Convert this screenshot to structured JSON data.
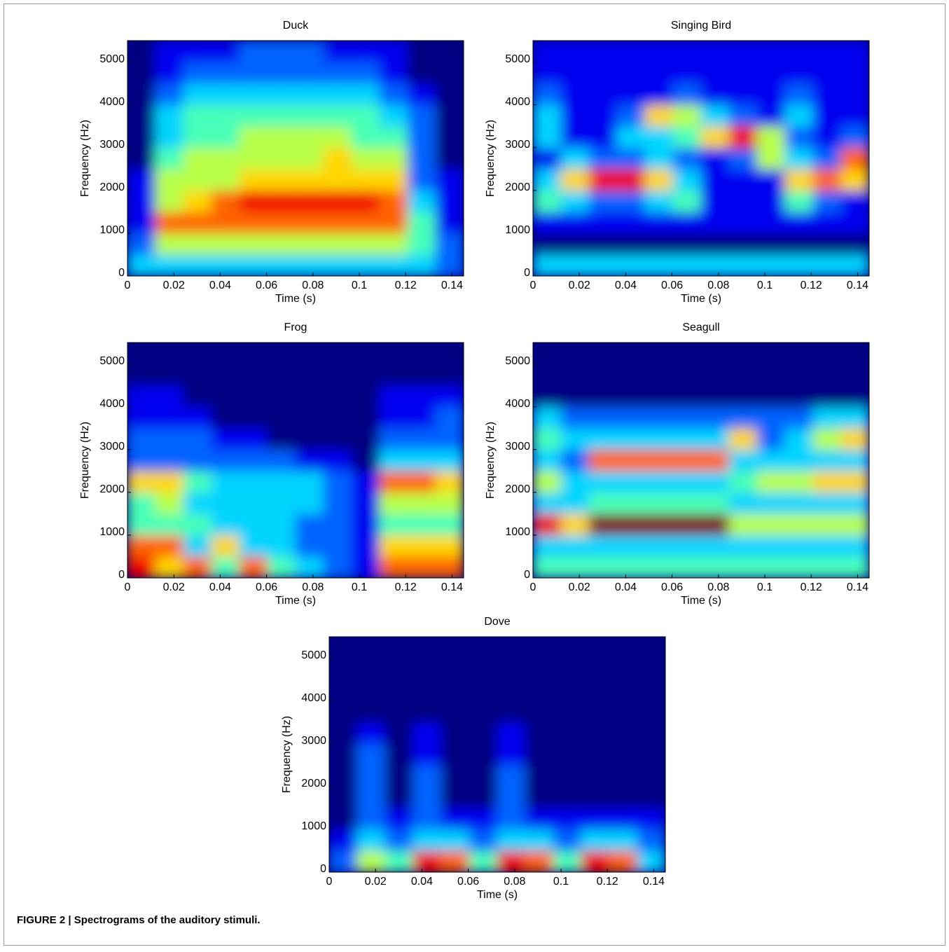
{
  "caption": "FIGURE 2 | Spectrograms of the auditory stimuli.",
  "chart_data": [
    {
      "type": "heatmap",
      "title": "Duck",
      "xlabel": "Time (s)",
      "ylabel": "Frequency (Hz)",
      "xlim": [
        0,
        0.145
      ],
      "xticks": [
        0,
        0.02,
        0.04,
        0.06,
        0.08,
        0.1,
        0.12,
        0.14
      ],
      "ylim": [
        0,
        5500
      ],
      "yticks": [
        0,
        1000,
        2000,
        3000,
        4000,
        5000
      ],
      "zlim": [
        0,
        9
      ],
      "z": [
        [
          3,
          3,
          3,
          3,
          3,
          3,
          3,
          3,
          3,
          3,
          3,
          2
        ],
        [
          2,
          5,
          5,
          5,
          5,
          5,
          5,
          5,
          5,
          5,
          4,
          2
        ],
        [
          1,
          7,
          7,
          7,
          7,
          7,
          7,
          7,
          7,
          7,
          4,
          1
        ],
        [
          1,
          5,
          6,
          7,
          8,
          8,
          8,
          8,
          8,
          7,
          3,
          1
        ],
        [
          1,
          5,
          5,
          5,
          6,
          6,
          6,
          6,
          6,
          6,
          2,
          1
        ],
        [
          0,
          4,
          5,
          5,
          5,
          5,
          5,
          6,
          5,
          5,
          2,
          0
        ],
        [
          0,
          3,
          4,
          4,
          5,
          5,
          5,
          5,
          4,
          4,
          2,
          0
        ],
        [
          0,
          3,
          4,
          4,
          4,
          4,
          4,
          4,
          4,
          3,
          2,
          0
        ],
        [
          0,
          2,
          3,
          3,
          3,
          3,
          3,
          3,
          3,
          2,
          1,
          0
        ],
        [
          0,
          1,
          2,
          2,
          2,
          2,
          2,
          2,
          2,
          1,
          0,
          0
        ],
        [
          0,
          1,
          1,
          1,
          2,
          2,
          2,
          1,
          1,
          1,
          0,
          0
        ]
      ]
    },
    {
      "type": "heatmap",
      "title": "Singing Bird",
      "xlabel": "Time (s)",
      "ylabel": "Frequency (Hz)",
      "xlim": [
        0,
        0.145
      ],
      "xticks": [
        0,
        0.02,
        0.04,
        0.06,
        0.08,
        0.1,
        0.12,
        0.14
      ],
      "ylim": [
        0,
        5500
      ],
      "yticks": [
        0,
        1000,
        2000,
        3000,
        4000,
        5000
      ],
      "zlim": [
        0,
        9
      ],
      "z": [
        [
          3,
          3,
          3,
          3,
          3,
          3,
          3,
          3,
          3,
          3,
          3,
          3
        ],
        [
          0,
          0,
          0,
          0,
          0,
          0,
          0,
          0,
          0,
          0,
          0,
          0
        ],
        [
          1,
          1,
          1,
          1,
          1,
          1,
          1,
          1,
          1,
          1,
          1,
          1
        ],
        [
          4,
          3,
          2,
          2,
          3,
          4,
          1,
          1,
          1,
          4,
          2,
          1
        ],
        [
          3,
          6,
          8,
          8,
          6,
          3,
          1,
          1,
          1,
          6,
          7,
          6
        ],
        [
          1,
          3,
          2,
          2,
          3,
          2,
          1,
          2,
          5,
          3,
          2,
          7
        ],
        [
          3,
          1,
          1,
          3,
          3,
          4,
          6,
          8,
          5,
          2,
          1,
          2
        ],
        [
          3,
          1,
          1,
          2,
          6,
          5,
          3,
          2,
          1,
          3,
          1,
          1
        ],
        [
          2,
          1,
          1,
          1,
          1,
          2,
          1,
          1,
          1,
          2,
          1,
          1
        ],
        [
          1,
          1,
          1,
          1,
          1,
          1,
          1,
          1,
          1,
          1,
          1,
          1
        ],
        [
          1,
          1,
          1,
          1,
          1,
          1,
          1,
          1,
          1,
          1,
          1,
          1
        ]
      ]
    },
    {
      "type": "heatmap",
      "title": "Frog",
      "xlabel": "Time (s)",
      "ylabel": "Frequency (Hz)",
      "xlim": [
        0,
        0.145
      ],
      "xticks": [
        0,
        0.02,
        0.04,
        0.06,
        0.08,
        0.1,
        0.12,
        0.14
      ],
      "ylim": [
        0,
        5500
      ],
      "yticks": [
        0,
        1000,
        2000,
        3000,
        4000,
        5000
      ],
      "zlim": [
        0,
        9
      ],
      "z": [
        [
          8,
          6,
          7,
          4,
          7,
          4,
          3,
          2,
          1,
          7,
          7,
          7
        ],
        [
          7,
          7,
          3,
          6,
          3,
          3,
          2,
          2,
          1,
          6,
          6,
          6
        ],
        [
          4,
          4,
          4,
          3,
          3,
          3,
          2,
          2,
          1,
          4,
          4,
          4
        ],
        [
          4,
          5,
          3,
          3,
          3,
          3,
          3,
          2,
          1,
          5,
          5,
          5
        ],
        [
          6,
          6,
          4,
          3,
          3,
          3,
          3,
          2,
          1,
          7,
          7,
          6
        ],
        [
          2,
          2,
          2,
          2,
          2,
          2,
          1,
          1,
          0,
          3,
          3,
          3
        ],
        [
          2,
          2,
          2,
          1,
          1,
          0,
          0,
          0,
          0,
          2,
          2,
          2
        ],
        [
          1,
          1,
          1,
          0,
          0,
          0,
          0,
          0,
          0,
          1,
          1,
          2
        ],
        [
          1,
          1,
          0,
          0,
          0,
          0,
          0,
          0,
          0,
          1,
          1,
          1
        ],
        [
          0,
          0,
          0,
          0,
          0,
          0,
          0,
          0,
          0,
          0,
          0,
          0
        ],
        [
          0,
          0,
          0,
          0,
          0,
          0,
          0,
          0,
          0,
          0,
          0,
          0
        ]
      ]
    },
    {
      "type": "heatmap",
      "title": "Seagull",
      "xlabel": "Time (s)",
      "ylabel": "Frequency (Hz)",
      "xlim": [
        0,
        0.145
      ],
      "xticks": [
        0,
        0.02,
        0.04,
        0.06,
        0.08,
        0.1,
        0.12,
        0.14
      ],
      "ylim": [
        0,
        5500
      ],
      "yticks": [
        0,
        1000,
        2000,
        3000,
        4000,
        5000
      ],
      "zlim": [
        0,
        9
      ],
      "z": [
        [
          4,
          4,
          4,
          4,
          4,
          4,
          4,
          4,
          4,
          4,
          4,
          4
        ],
        [
          3,
          3,
          3,
          3,
          3,
          3,
          3,
          3,
          3,
          3,
          3,
          3
        ],
        [
          8,
          6,
          9,
          9,
          9,
          9,
          9,
          5,
          5,
          5,
          5,
          5
        ],
        [
          3,
          3,
          4,
          4,
          4,
          4,
          4,
          3,
          3,
          3,
          3,
          3
        ],
        [
          5,
          3,
          3,
          3,
          3,
          3,
          3,
          4,
          5,
          5,
          6,
          6
        ],
        [
          3,
          2,
          7,
          7,
          7,
          7,
          7,
          3,
          3,
          3,
          3,
          3
        ],
        [
          4,
          3,
          3,
          3,
          3,
          3,
          3,
          6,
          2,
          3,
          5,
          6
        ],
        [
          3,
          2,
          2,
          2,
          2,
          2,
          2,
          2,
          2,
          2,
          3,
          3
        ],
        [
          0,
          0,
          0,
          0,
          0,
          0,
          0,
          0,
          0,
          0,
          0,
          0
        ],
        [
          0,
          0,
          0,
          0,
          0,
          0,
          0,
          0,
          0,
          0,
          0,
          0
        ],
        [
          0,
          0,
          0,
          0,
          0,
          0,
          0,
          0,
          0,
          0,
          0,
          0
        ]
      ]
    },
    {
      "type": "heatmap",
      "title": "Dove",
      "xlabel": "Time (s)",
      "ylabel": "Frequency (Hz)",
      "xlim": [
        0,
        0.145
      ],
      "xticks": [
        0,
        0.02,
        0.04,
        0.06,
        0.08,
        0.1,
        0.12,
        0.14
      ],
      "ylim": [
        0,
        5500
      ],
      "yticks": [
        0,
        1000,
        2000,
        3000,
        4000,
        5000
      ],
      "zlim": [
        0,
        9
      ],
      "z": [
        [
          2,
          5,
          4,
          8,
          7,
          4,
          8,
          7,
          4,
          8,
          7,
          3
        ],
        [
          1,
          3,
          2,
          3,
          3,
          2,
          3,
          3,
          2,
          3,
          3,
          2
        ],
        [
          0,
          2,
          1,
          2,
          1,
          1,
          2,
          1,
          1,
          1,
          1,
          1
        ],
        [
          0,
          2,
          0,
          2,
          0,
          0,
          2,
          0,
          0,
          0,
          0,
          0
        ],
        [
          0,
          2,
          0,
          2,
          0,
          0,
          2,
          0,
          0,
          0,
          0,
          0
        ],
        [
          0,
          2,
          0,
          1,
          0,
          0,
          1,
          0,
          0,
          0,
          0,
          0
        ],
        [
          0,
          1,
          0,
          1,
          0,
          0,
          1,
          0,
          0,
          0,
          0,
          0
        ],
        [
          0,
          0,
          0,
          0,
          0,
          0,
          0,
          0,
          0,
          0,
          0,
          0
        ],
        [
          0,
          0,
          0,
          0,
          0,
          0,
          0,
          0,
          0,
          0,
          0,
          0
        ],
        [
          0,
          0,
          0,
          0,
          0,
          0,
          0,
          0,
          0,
          0,
          0,
          0
        ],
        [
          0,
          0,
          0,
          0,
          0,
          0,
          0,
          0,
          0,
          0,
          0,
          0
        ]
      ]
    }
  ]
}
